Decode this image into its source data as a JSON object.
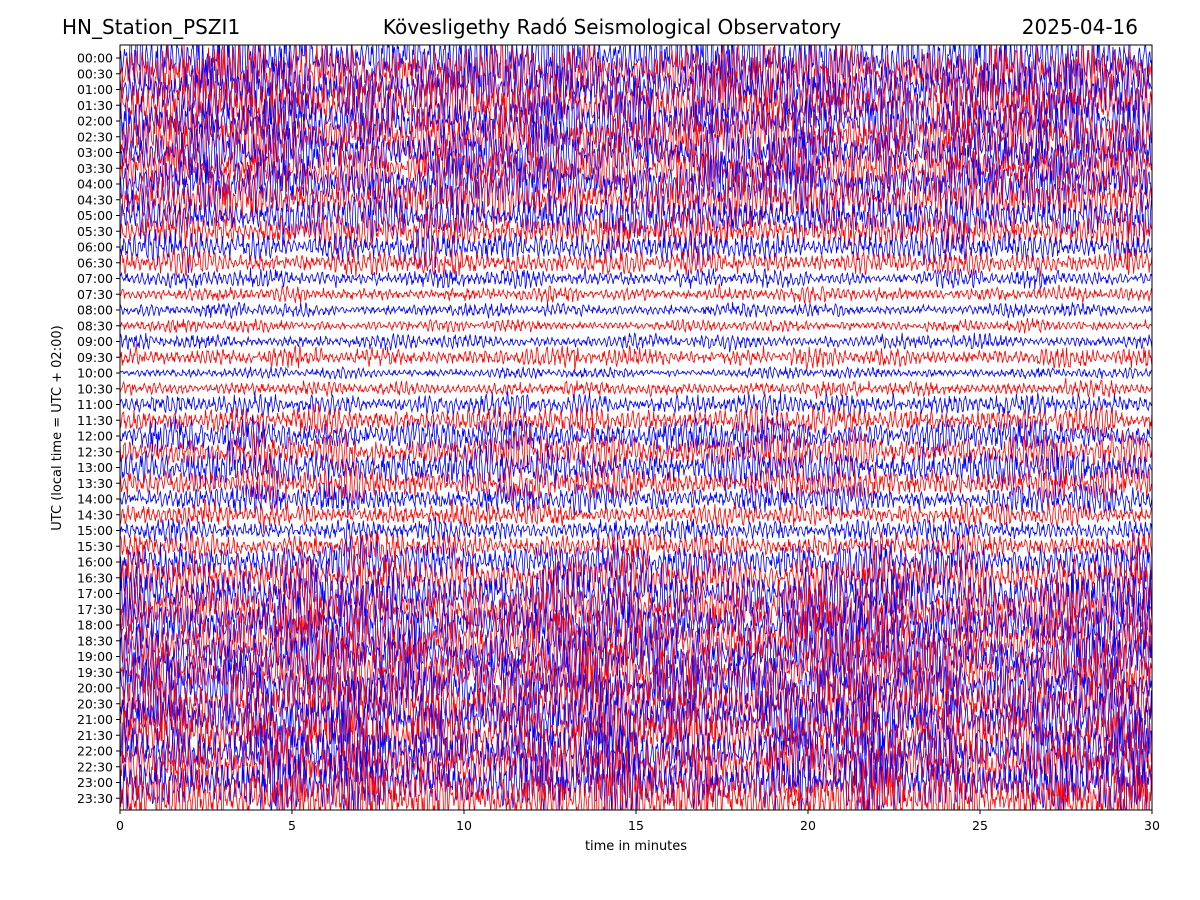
{
  "header": {
    "station": "HN_Station_PSZI1",
    "observatory": "Kövesligethy Radó Seismological Observatory",
    "date": "2025-04-16"
  },
  "chart_data": {
    "type": "line",
    "subtype": "helicorder",
    "xlabel": "time in minutes",
    "ylabel": "UTC (local time = UTC + 02:00)",
    "xlim": [
      0,
      30
    ],
    "x_ticks": [
      0,
      5,
      10,
      15,
      20,
      25,
      30
    ],
    "rows": [
      "00:00",
      "00:30",
      "01:00",
      "01:30",
      "02:00",
      "02:30",
      "03:00",
      "03:30",
      "04:00",
      "04:30",
      "05:00",
      "05:30",
      "06:00",
      "06:30",
      "07:00",
      "07:30",
      "08:00",
      "08:30",
      "09:00",
      "09:30",
      "10:00",
      "10:30",
      "11:00",
      "11:30",
      "12:00",
      "12:30",
      "13:00",
      "13:30",
      "14:00",
      "14:30",
      "15:00",
      "15:30",
      "16:00",
      "16:30",
      "17:00",
      "17:30",
      "18:00",
      "18:30",
      "19:00",
      "19:30",
      "20:00",
      "20:30",
      "21:00",
      "21:30",
      "22:00",
      "22:30",
      "23:00",
      "23:30"
    ],
    "trace_colors": [
      "#0000ff",
      "#ff0000"
    ],
    "row_amplitudes": [
      2.6,
      2.6,
      2.5,
      2.5,
      2.4,
      2.4,
      2.3,
      2.2,
      2.2,
      2.0,
      1.8,
      1.6,
      1.3,
      1.0,
      0.75,
      0.6,
      0.55,
      0.5,
      0.6,
      0.8,
      0.45,
      0.6,
      0.9,
      1.1,
      1.4,
      1.5,
      1.6,
      1.4,
      1.2,
      1.0,
      0.9,
      1.1,
      1.7,
      2.0,
      2.2,
      2.3,
      2.4,
      2.5,
      2.5,
      2.6,
      2.6,
      2.6,
      2.6,
      2.6,
      2.6,
      2.6,
      2.6,
      2.6
    ],
    "grid": false
  }
}
